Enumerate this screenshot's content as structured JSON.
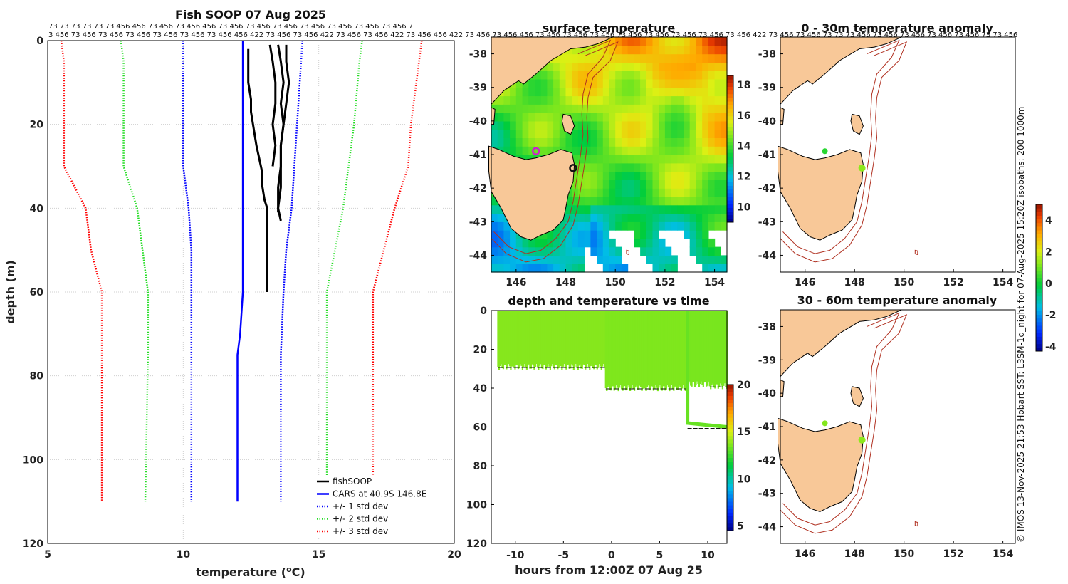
{
  "header_strip": {
    "line1": "73 73 73 73 73 73 456 456 73 456 73 456 456 73 456 73 456 73 456 73 456 73 456 73 456 73 456 7",
    "line2": "3 456 73 456 73 456 73 456 73 456 73 456 73 456 456 422 73 456 73 456 422 73 456 73 456 422 73 456 456 422 73 456 73 456 456 73 456 73 456 73 456 73 456 73 456 73 456 73 456 73 456 422 73 456 73 456 73 73 73 456 73 456 73 456 73 456 73 456 73 73 456"
  },
  "credit": "© IMOS 13-Nov-2025 21:53 Hobart SST: L3SM-1d_night for 07-Aug-2025 15:20Z isobaths: 200  1000m",
  "colors": {
    "fishsoop": "#000000",
    "cars": "#0000ff",
    "std1": "#0000ff",
    "std2": "#22dd22",
    "std3": "#ff0000",
    "land": "#f8c898",
    "isobath": "#b03020",
    "track": "#99e02a"
  },
  "chart_data": [
    {
      "id": "profile",
      "type": "line",
      "title": "Fish SOOP 07 Aug 2025",
      "xlabel": "temperature (°C)",
      "ylabel": "depth (m)",
      "xlim": [
        5,
        20
      ],
      "ylim": [
        0,
        120
      ],
      "y_reversed": true,
      "xticks": [
        5,
        10,
        15,
        20
      ],
      "yticks": [
        0,
        20,
        40,
        60,
        80,
        100,
        120
      ],
      "grid": true,
      "legend_position": "bottom-right",
      "legend": [
        {
          "label": "fishSOOP",
          "color": "#000000",
          "style": "solid"
        },
        {
          "label": "CARS at 40.9S 146.8E",
          "color": "#0000ff",
          "style": "solid"
        },
        {
          "label": "+/- 1 std dev",
          "color": "#0000ff",
          "style": "dotted"
        },
        {
          "label": "+/- 2 std dev",
          "color": "#22dd22",
          "style": "dotted"
        },
        {
          "label": "+/- 3 std dev",
          "color": "#ff0000",
          "style": "dotted"
        }
      ],
      "series": [
        {
          "name": "CARS at 40.9S 146.8E",
          "color": "#0000ff",
          "style": "solid",
          "depth": [
            0,
            10,
            20,
            30,
            40,
            50,
            60,
            70,
            75,
            80,
            90,
            100,
            110
          ],
          "temp": [
            12.2,
            12.2,
            12.2,
            12.2,
            12.2,
            12.2,
            12.2,
            12.1,
            12.0,
            12.0,
            12.0,
            12.0,
            12.0
          ]
        },
        {
          "name": "+1 std dev",
          "color": "#0000ff",
          "style": "dotted",
          "depth": [
            0,
            10,
            20,
            30,
            40,
            50,
            60,
            75,
            110
          ],
          "temp": [
            14.4,
            14.3,
            14.2,
            14.1,
            14.0,
            13.8,
            13.7,
            13.6,
            13.6
          ]
        },
        {
          "name": "-1 std dev",
          "color": "#0000ff",
          "style": "dotted",
          "depth": [
            0,
            10,
            20,
            30,
            40,
            50,
            60,
            75,
            110
          ],
          "temp": [
            10.0,
            10.0,
            10.0,
            10.0,
            10.2,
            10.3,
            10.3,
            10.3,
            10.3
          ]
        },
        {
          "name": "+2 std dev",
          "color": "#22dd22",
          "style": "dotted",
          "depth": [
            0,
            5,
            20,
            30,
            40,
            50,
            60,
            75,
            110
          ],
          "temp": [
            16.6,
            16.5,
            16.3,
            16.1,
            15.9,
            15.6,
            15.3,
            15.3,
            15.3
          ]
        },
        {
          "name": "-2 std dev",
          "color": "#22dd22",
          "style": "dotted",
          "depth": [
            0,
            5,
            20,
            30,
            40,
            50,
            60,
            75,
            110
          ],
          "temp": [
            7.7,
            7.8,
            7.8,
            7.8,
            8.3,
            8.5,
            8.7,
            8.7,
            8.6
          ]
        },
        {
          "name": "+3 std dev",
          "color": "#ff0000",
          "style": "dotted",
          "depth": [
            0,
            10,
            20,
            30,
            40,
            50,
            60,
            75,
            110
          ],
          "temp": [
            18.8,
            18.6,
            18.4,
            18.3,
            17.8,
            17.4,
            17.0,
            17.0,
            17.0
          ]
        },
        {
          "name": "-3 std dev",
          "color": "#ff0000",
          "style": "dotted",
          "depth": [
            0,
            5,
            20,
            30,
            40,
            50,
            60,
            75,
            110
          ],
          "temp": [
            5.5,
            5.6,
            5.6,
            5.6,
            6.4,
            6.6,
            7.0,
            7.0,
            7.0
          ]
        },
        {
          "name": "fishSOOP",
          "color": "#000000",
          "style": "solid",
          "width": 3,
          "depth": [
            2,
            5,
            10,
            14,
            17,
            21,
            25,
            28,
            31,
            34,
            38,
            40,
            45,
            50,
            55,
            60
          ],
          "temp": [
            12.4,
            12.4,
            12.4,
            12.5,
            12.5,
            12.6,
            12.7,
            12.8,
            12.9,
            12.9,
            13.0,
            13.1,
            13.1,
            13.1,
            13.1,
            13.1
          ]
        },
        {
          "name": "fishSOOP",
          "color": "#000000",
          "style": "solid",
          "width": 3,
          "depth": [
            1,
            5,
            10,
            15,
            20,
            25,
            30
          ],
          "temp": [
            13.2,
            13.3,
            13.4,
            13.4,
            13.3,
            13.4,
            13.3
          ]
        },
        {
          "name": "fishSOOP",
          "color": "#000000",
          "style": "solid",
          "width": 3,
          "depth": [
            1,
            5,
            10,
            15,
            20,
            25,
            30,
            35,
            41
          ],
          "temp": [
            13.5,
            13.6,
            13.7,
            13.6,
            13.7,
            13.6,
            13.6,
            13.5,
            13.5
          ]
        },
        {
          "name": "fishSOOP",
          "color": "#000000",
          "style": "solid",
          "width": 3,
          "depth": [
            1,
            5,
            10,
            15,
            20,
            25,
            30,
            35,
            40,
            43
          ],
          "temp": [
            13.8,
            13.8,
            13.9,
            13.8,
            13.7,
            13.6,
            13.6,
            13.6,
            13.5,
            13.6
          ]
        }
      ]
    },
    {
      "id": "sst",
      "type": "heatmap",
      "title": "surface temperature",
      "xlim": [
        145,
        154.5
      ],
      "ylim": [
        -44.5,
        -37.5
      ],
      "xticks": [
        146,
        148,
        150,
        152,
        154
      ],
      "yticks": [
        -38,
        -39,
        -40,
        -41,
        -42,
        -43,
        -44
      ],
      "colorbar": {
        "range": [
          9,
          18.6
        ],
        "ticks": [
          10,
          12,
          14,
          16,
          18
        ]
      },
      "markers": [
        {
          "name": "magenta-circle",
          "lon": 146.8,
          "lat": -40.9,
          "color": "#cc22cc"
        },
        {
          "name": "black-circle",
          "lon": 148.3,
          "lat": -41.4,
          "color": "#111111"
        }
      ]
    },
    {
      "id": "timeseries",
      "type": "scatter",
      "title": "depth and temperature vs time",
      "xlabel": "hours from 12:00Z 07 Aug 25",
      "xlim": [
        -12.5,
        12
      ],
      "ylim": [
        0,
        120
      ],
      "y_reversed": true,
      "xticks": [
        -10,
        -5,
        0,
        5,
        10
      ],
      "yticks": [
        0,
        20,
        40,
        60,
        80,
        100,
        120
      ],
      "colorbar": {
        "range": [
          4.5,
          20
        ],
        "ticks": [
          5,
          10,
          15,
          20
        ]
      },
      "segments": [
        {
          "t_start": -11.8,
          "t_end": -0.6,
          "max_depth": 29,
          "temp": 13.7
        },
        {
          "t_start": -0.6,
          "t_end": 7.8,
          "max_depth": 40,
          "temp": 13.6
        },
        {
          "t_start": 7.8,
          "t_end": 10.2,
          "max_depth": 38,
          "temp": 13.5
        },
        {
          "t_start": 10.2,
          "t_end": 12.0,
          "max_depth": 39,
          "temp": 13.5
        },
        {
          "t_start": 7.9,
          "t_end": 12.0,
          "max_depth": 60,
          "temp": 13.2
        }
      ]
    },
    {
      "id": "anom1",
      "type": "scatter",
      "title": "0 - 30m temperature anomaly",
      "xlim": [
        145,
        154.5
      ],
      "ylim": [
        -44.5,
        -37.5
      ],
      "xticks": [
        146,
        148,
        150,
        152,
        154
      ],
      "yticks": [
        -38,
        -39,
        -40,
        -41,
        -42,
        -43,
        -44
      ],
      "points": [
        {
          "lon": 146.8,
          "lat": -40.9,
          "anomaly": 0.3
        },
        {
          "lon": 148.3,
          "lat": -41.4,
          "anomaly": 1.3
        }
      ]
    },
    {
      "id": "anom2",
      "type": "scatter",
      "title": "30 - 60m temperature anomaly",
      "xlim": [
        145,
        154.5
      ],
      "ylim": [
        -44.5,
        -37.5
      ],
      "xticks": [
        146,
        148,
        150,
        152,
        154
      ],
      "yticks": [
        -38,
        -39,
        -40,
        -41,
        -42,
        -43,
        -44
      ],
      "points": [
        {
          "lon": 146.8,
          "lat": -40.9,
          "anomaly": 1.2
        },
        {
          "lon": 148.3,
          "lat": -41.4,
          "anomaly": 1.3
        }
      ],
      "colorbar": {
        "range": [
          -4.3,
          5
        ],
        "ticks": [
          -4,
          -2,
          0,
          2,
          4
        ]
      }
    }
  ]
}
